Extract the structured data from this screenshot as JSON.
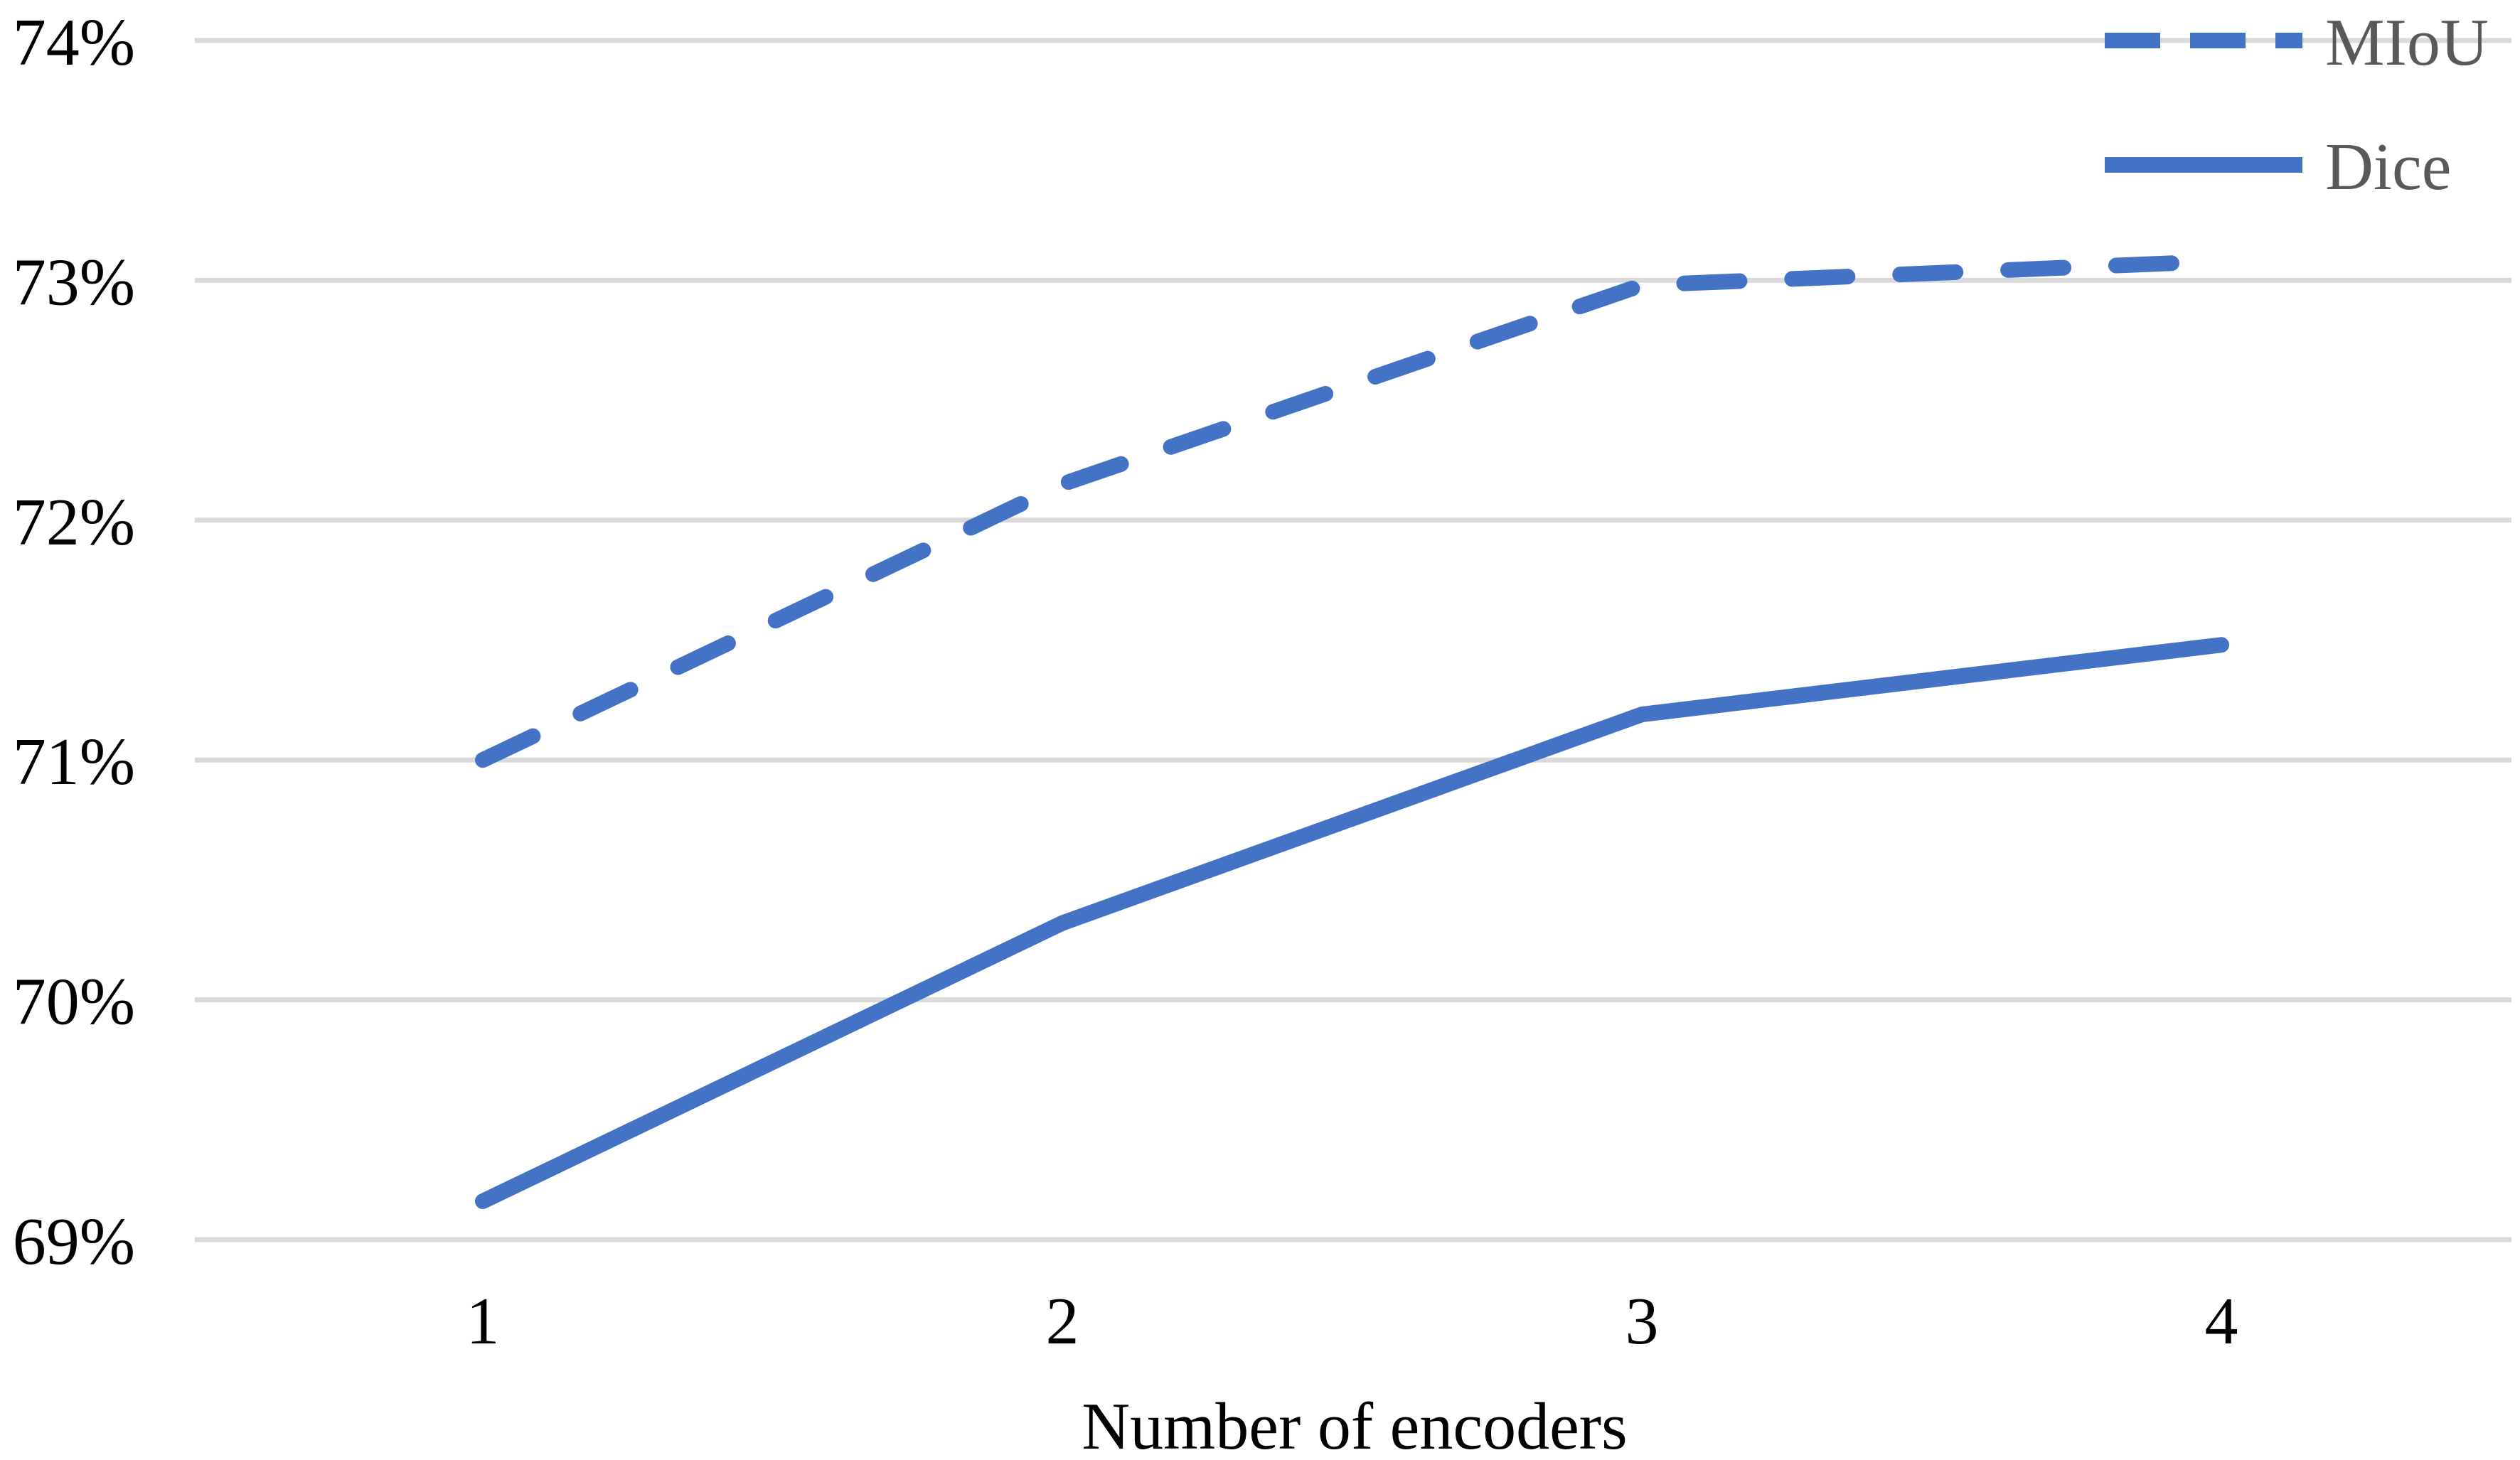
{
  "chart_data": {
    "type": "line",
    "title": "",
    "xlabel": "Number of encoders",
    "ylabel": "",
    "x": [
      1,
      2,
      3,
      4
    ],
    "ylim": [
      0.69,
      0.74
    ],
    "yticks": [
      0.69,
      0.7,
      0.71,
      0.72,
      0.73,
      0.74
    ],
    "ytick_labels": [
      "69%",
      "70%",
      "71%",
      "72%",
      "73%",
      "74%"
    ],
    "xtick_labels": [
      "1",
      "2",
      "3",
      "4"
    ],
    "grid": true,
    "legend_position": "top-right",
    "series": [
      {
        "name": "MIoU",
        "values": [
          0.71,
          0.7215,
          0.7298,
          0.7308
        ],
        "color": "#4472C4",
        "line_style": "dashed"
      },
      {
        "name": "Dice",
        "values": [
          0.6916,
          0.7032,
          0.7119,
          0.7148
        ],
        "color": "#4472C4",
        "line_style": "solid"
      }
    ]
  }
}
